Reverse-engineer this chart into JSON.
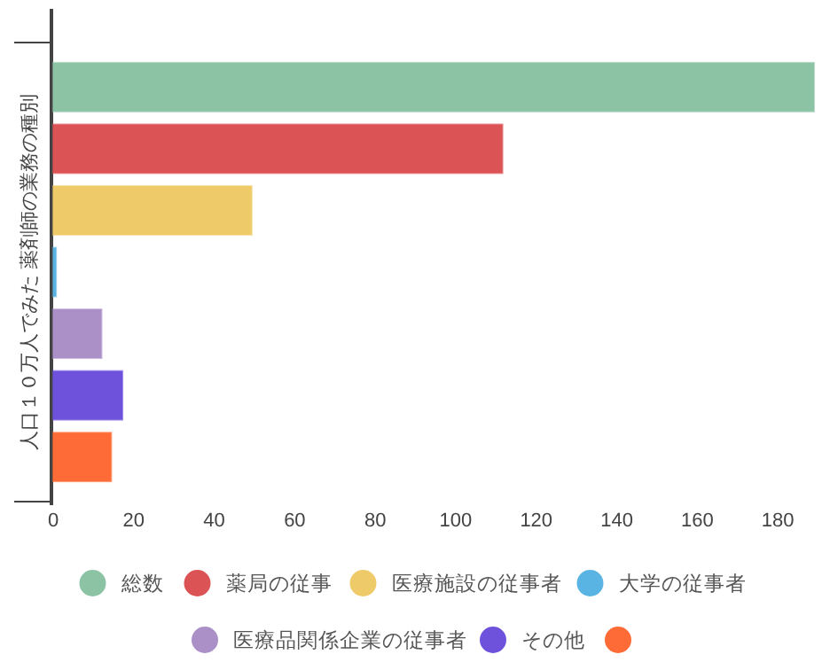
{
  "chart_data": {
    "type": "bar",
    "orientation": "horizontal",
    "ylabel": "人口１０万人でみた 薬剤師の業務の種別",
    "categories": [
      null
    ],
    "series": [
      {
        "name": "総数",
        "color": "#8cc3a5",
        "values": [
          189
        ]
      },
      {
        "name": "薬局の従事",
        "color": "#dc5356",
        "values": [
          111.6
        ]
      },
      {
        "name": "医療施設の従事者",
        "color": "#efca69",
        "values": [
          49.3
        ]
      },
      {
        "name": "大学の従事者",
        "color": "#5ab4e3",
        "values": [
          0.7
        ]
      },
      {
        "name": "医療品関係企業の従事者",
        "color": "#ab90c8",
        "values": [
          12
        ]
      },
      {
        "name": "その他",
        "color": "#6e52dc",
        "values": [
          17.2
        ]
      },
      {
        "color": "#ff6b36",
        "values": [
          14.4
        ]
      }
    ],
    "xlim": [
      0,
      189
    ],
    "xticks": [
      0,
      20,
      40,
      60,
      80,
      100,
      120,
      140,
      160,
      180
    ],
    "grid": false,
    "legend": "bottom"
  }
}
